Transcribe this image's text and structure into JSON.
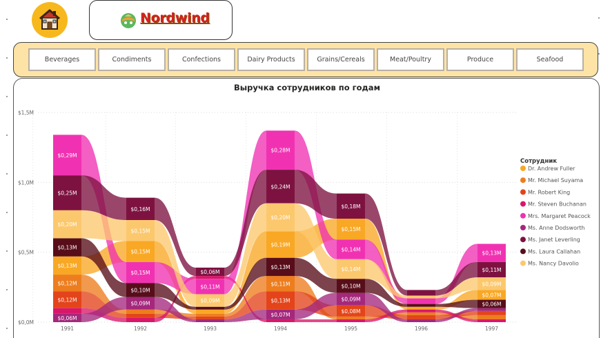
{
  "brand": {
    "name": "Nordwind",
    "icon": "house-icon",
    "logo_icon": "globe-hat-icon"
  },
  "nav": {
    "categories": [
      "Beverages",
      "Condiments",
      "Confections",
      "Dairy Products",
      "Grains/Cereals",
      "Meat/Poultry",
      "Produce",
      "Seafood"
    ]
  },
  "chart_data": {
    "type": "area",
    "subtype": "ribbon",
    "title": "Выручка сотрудников по годам",
    "xlabel": "",
    "ylabel": "",
    "ylim": [
      0,
      1.5
    ],
    "y_ticks": [
      "$0,0M",
      "$0,5M",
      "$1,0M",
      "$1,5M"
    ],
    "y_tick_values": [
      0,
      0.5,
      1.0,
      1.5
    ],
    "grid": true,
    "legend_title": "Сотрудник",
    "legend_position": "right",
    "categories": [
      "1991",
      "1992",
      "1993",
      "1994",
      "1995",
      "1996",
      "1997"
    ],
    "series": [
      {
        "name": "Dr. Andrew Fuller",
        "color": "#f9a825",
        "values": [
          0.13,
          0.15,
          0.03,
          0.19,
          0.15,
          0.02,
          0.07
        ],
        "labels": [
          "$0,13M",
          "$0,15M",
          "",
          "$0,19M",
          "$0,15M",
          "",
          "$0,07M"
        ]
      },
      {
        "name": "Mr. Michael Suyama",
        "color": "#ed7d1e",
        "values": [
          0.12,
          0.03,
          0.02,
          0.11,
          0.02,
          0.02,
          0.03
        ],
        "labels": [
          "$0,12M",
          "",
          "",
          "$0,11M",
          "",
          "",
          ""
        ]
      },
      {
        "name": "Mr. Robert King",
        "color": "#e3441a",
        "values": [
          0.12,
          0.03,
          0.02,
          0.13,
          0.08,
          0.03,
          0.03
        ],
        "labels": [
          "$0,12M",
          "",
          "",
          "$0,13M",
          "$0,08M",
          "",
          ""
        ]
      },
      {
        "name": "Mr. Steven Buchanan",
        "color": "#d9176a",
        "values": [
          0.04,
          0.03,
          0.02,
          0.02,
          0.02,
          0.02,
          0.02
        ],
        "labels": [
          "",
          "",
          "",
          "",
          "",
          "",
          ""
        ]
      },
      {
        "name": "Mrs. Margaret Peacock",
        "color": "#f032b2",
        "values": [
          0.29,
          0.15,
          0.11,
          0.28,
          0.14,
          0.04,
          0.13
        ],
        "labels": [
          "$0,29M",
          "$0,15M",
          "$0,11M",
          "$0,28M",
          "$0,14M",
          "",
          "$0,13M"
        ]
      },
      {
        "name": "Ms. Anne Dodsworth",
        "color": "#a4287c",
        "values": [
          0.06,
          0.09,
          0.02,
          0.07,
          0.09,
          0.02,
          0.02
        ],
        "labels": [
          "$0,06M",
          "$0,09M",
          "",
          "$0,07M",
          "$0,09M",
          "",
          ""
        ]
      },
      {
        "name": "Ms. Janet Leverling",
        "color": "#7d1240",
        "values": [
          0.25,
          0.16,
          0.06,
          0.24,
          0.18,
          0.04,
          0.11
        ],
        "labels": [
          "$0,25M",
          "$0,16M",
          "$0,06M",
          "$0,24M",
          "$0,18M",
          "",
          "$0,11M"
        ]
      },
      {
        "name": "Ms. Laura Callahan",
        "color": "#570e1a",
        "values": [
          0.13,
          0.1,
          0.02,
          0.13,
          0.1,
          0.02,
          0.06
        ],
        "labels": [
          "$0,13M",
          "$0,10M",
          "",
          "$0,13M",
          "$0,10M",
          "",
          "$0,06M"
        ]
      },
      {
        "name": "Ms. Nancy Davolio",
        "color": "#fcc86e",
        "values": [
          0.2,
          0.15,
          0.09,
          0.2,
          0.14,
          0.02,
          0.09
        ],
        "labels": [
          "$0,20M",
          "$0,15M",
          "$0,09M",
          "$0,20M",
          "$0,14M",
          "",
          "$0,09M"
        ]
      }
    ],
    "stack_order_by_year": [
      [
        5,
        3,
        2,
        1,
        0,
        7,
        8,
        6,
        4
      ],
      [
        3,
        2,
        1,
        5,
        7,
        4,
        0,
        8,
        6
      ],
      [
        5,
        2,
        1,
        0,
        7,
        8,
        4,
        3,
        6
      ],
      [
        3,
        5,
        2,
        1,
        7,
        0,
        8,
        6,
        4
      ],
      [
        3,
        1,
        2,
        5,
        7,
        8,
        4,
        0,
        6
      ],
      [
        5,
        2,
        1,
        3,
        0,
        7,
        4,
        8,
        6
      ],
      [
        3,
        1,
        2,
        5,
        7,
        0,
        8,
        6,
        4
      ]
    ]
  }
}
